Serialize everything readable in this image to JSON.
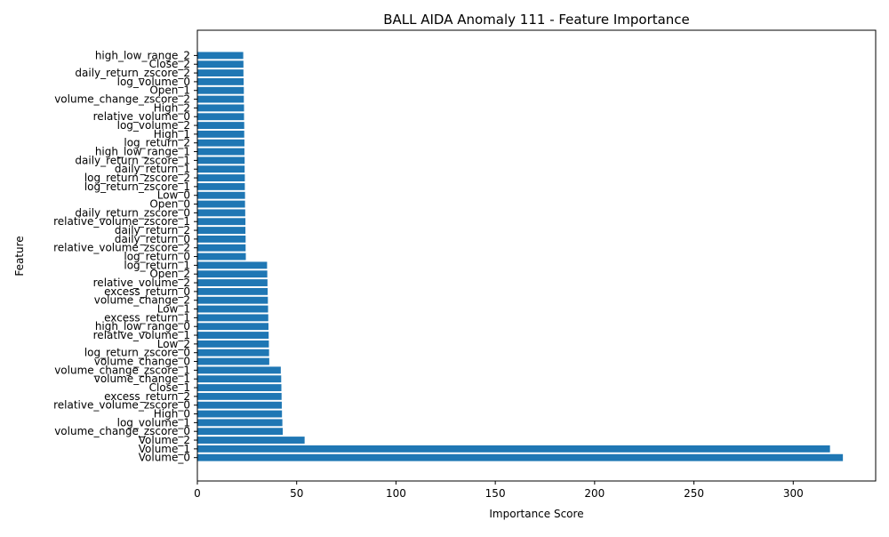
{
  "chart_data": {
    "type": "bar",
    "orientation": "horizontal",
    "title": "BALL AIDA Anomaly 111 - Feature Importance",
    "xlabel": "Importance Score",
    "ylabel": "Feature",
    "xlim": [
      0,
      341.5
    ],
    "xticks": [
      0,
      50,
      100,
      150,
      200,
      250,
      300
    ],
    "grid": false,
    "bar_color": "#1f77b4",
    "categories": [
      "Volume_0",
      "Volume_1",
      "Volume_2",
      "volume_change_zscore_0",
      "log_volume_1",
      "High_0",
      "relative_volume_zscore_0",
      "excess_return_2",
      "Close_1",
      "volume_change_1",
      "volume_change_zscore_1",
      "volume_change_0",
      "log_return_zscore_0",
      "Low_2",
      "relative_volume_1",
      "high_low_range_0",
      "excess_return_1",
      "Low_1",
      "volume_change_2",
      "excess_return_0",
      "relative_volume_2",
      "Open_2",
      "log_return_1",
      "log_return_0",
      "relative_volume_zscore_2",
      "daily_return_0",
      "daily_return_2",
      "relative_volume_zscore_1",
      "daily_return_zscore_0",
      "Open_0",
      "Low_0",
      "log_return_zscore_1",
      "log_return_zscore_2",
      "daily_return_1",
      "daily_return_zscore_1",
      "high_low_range_1",
      "log_return_2",
      "High_1",
      "log_volume_2",
      "relative_volume_0",
      "High_2",
      "volume_change_zscore_2",
      "Open_1",
      "log_volume_0",
      "daily_return_zscore_2",
      "Close_2",
      "high_low_range_2"
    ],
    "values": [
      325.0,
      318.5,
      54.0,
      43.0,
      42.8,
      42.6,
      42.5,
      42.4,
      42.3,
      42.2,
      42.0,
      36.2,
      36.1,
      36.0,
      35.9,
      35.8,
      35.7,
      35.6,
      35.5,
      35.4,
      35.3,
      35.2,
      35.1,
      24.4,
      24.3,
      24.3,
      24.2,
      24.2,
      24.1,
      24.0,
      24.0,
      23.9,
      23.9,
      23.8,
      23.8,
      23.7,
      23.7,
      23.6,
      23.6,
      23.5,
      23.5,
      23.4,
      23.4,
      23.3,
      23.2,
      23.2,
      23.1
    ]
  }
}
